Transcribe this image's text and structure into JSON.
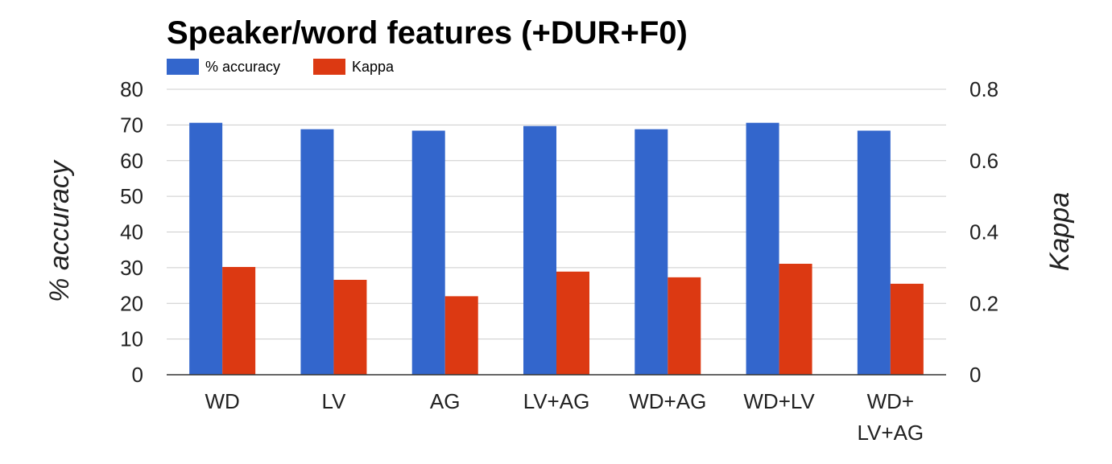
{
  "chart_data": {
    "type": "bar",
    "title": "Speaker/word features (+DUR+F0)",
    "categories": [
      [
        "WD"
      ],
      [
        "LV"
      ],
      [
        "AG"
      ],
      [
        "LV+AG"
      ],
      [
        "WD+AG"
      ],
      [
        "WD+LV"
      ],
      [
        "WD+",
        "LV+AG"
      ]
    ],
    "series": [
      {
        "name": "% accuracy",
        "axis": "left",
        "color": "#3366cc",
        "values": [
          70.6,
          68.8,
          68.4,
          69.7,
          68.8,
          70.6,
          68.4
        ]
      },
      {
        "name": "Kappa",
        "axis": "right",
        "color": "#dc3912",
        "values": [
          0.302,
          0.266,
          0.22,
          0.289,
          0.273,
          0.311,
          0.255
        ]
      }
    ],
    "ylabel_left": "% accuracy",
    "ylabel_right": "Kappa",
    "ylim_left": [
      0,
      80
    ],
    "ylim_right": [
      0,
      0.8
    ],
    "yticks_left": [
      "0",
      "10",
      "20",
      "30",
      "40",
      "50",
      "60",
      "70",
      "80"
    ],
    "yticks_right": [
      "0",
      "0.2",
      "0.4",
      "0.6",
      "0.8"
    ],
    "grid": true,
    "legend_position": "top-left"
  }
}
